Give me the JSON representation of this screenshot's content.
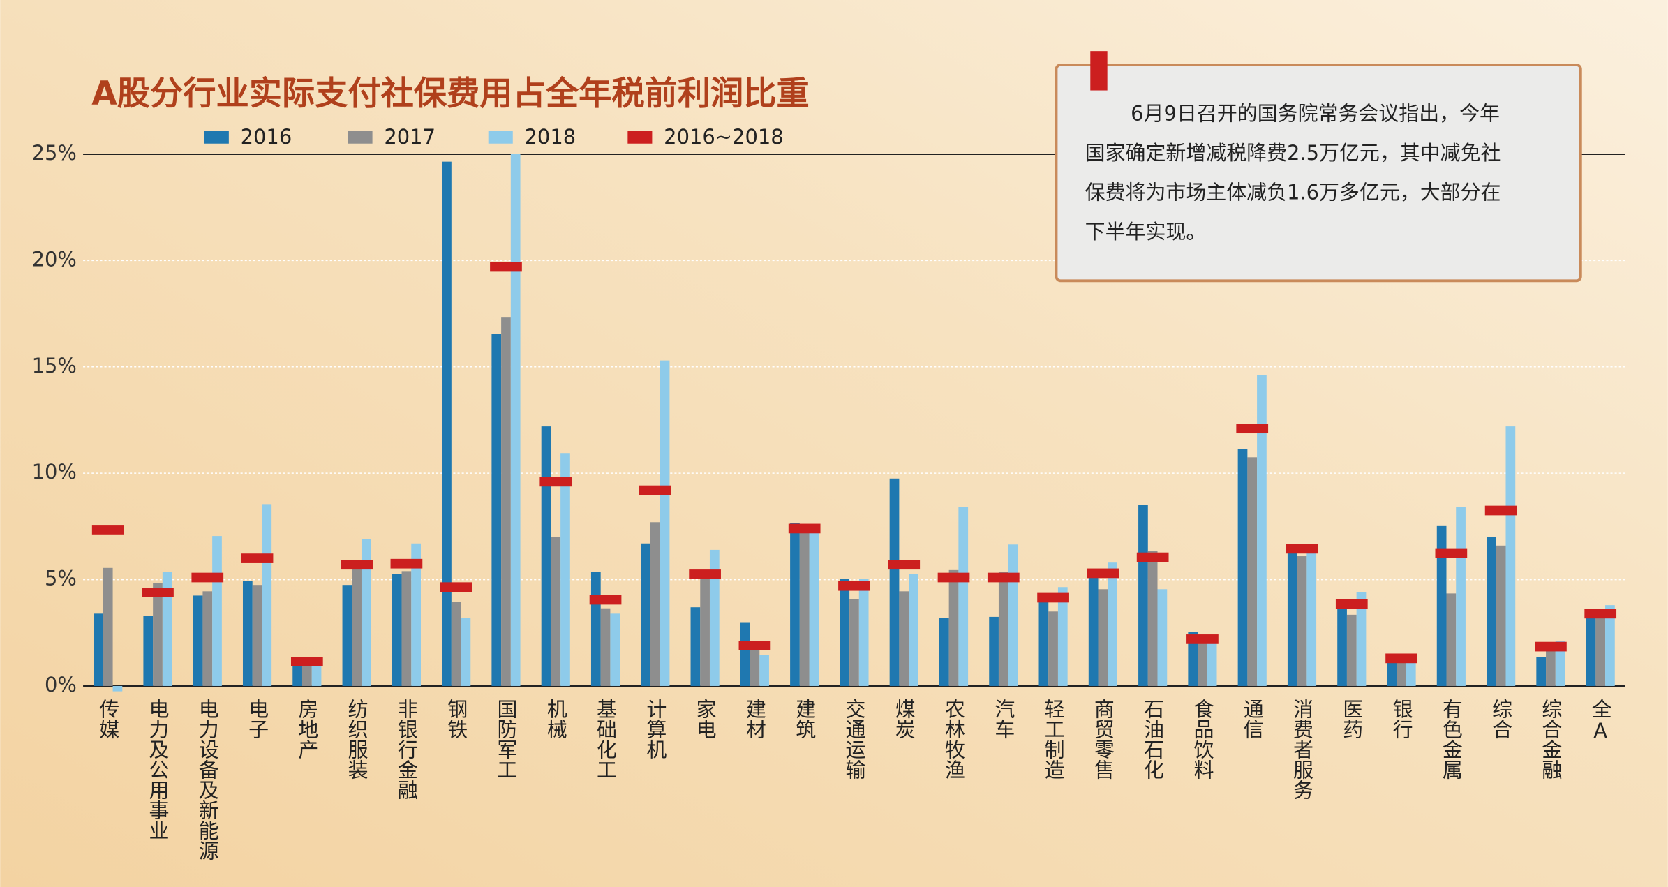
{
  "chart_data": {
    "type": "bar",
    "title": "A股分行业实际支付社保费用占全年税前利润比重",
    "annotation": [
      "6月9日召开的国务院常务会议指出，今年",
      "国家确定新增减税降费2.5万亿元，其中减免社",
      "保费将为市场主体减负1.6万多亿元，大部分在",
      "下半年实现。"
    ],
    "categories": [
      "传媒",
      "电力及公用事业",
      "电力设备及新能源",
      "电子",
      "房地产",
      "纺织服装",
      "非银行金融",
      "钢铁",
      "国防军工",
      "机械",
      "基础化工",
      "计算机",
      "家电",
      "建材",
      "建筑",
      "交通运输",
      "煤炭",
      "农林牧渔",
      "汽车",
      "轻工制造",
      "商贸零售",
      "石油石化",
      "食品饮料",
      "通信",
      "消费者服务",
      "医药",
      "银行",
      "有色金属",
      "综合",
      "综合金融",
      "全A"
    ],
    "series": [
      {
        "name": "2016",
        "color": "#1f78b0",
        "values": [
          3.4,
          3.3,
          4.25,
          4.95,
          0.95,
          4.75,
          5.25,
          24.65,
          16.55,
          12.2,
          5.35,
          6.7,
          3.7,
          3.0,
          7.65,
          5.05,
          9.75,
          3.2,
          3.25,
          3.95,
          5.25,
          8.5,
          2.55,
          11.15,
          6.45,
          3.75,
          1.15,
          7.55,
          7.0,
          1.35,
          3.4
        ]
      },
      {
        "name": "2017",
        "color": "#8e8e8e",
        "values": [
          5.55,
          4.85,
          4.45,
          4.75,
          0.95,
          5.75,
          5.4,
          3.95,
          17.35,
          7.0,
          3.65,
          7.7,
          5.25,
          1.75,
          7.45,
          4.1,
          4.45,
          5.45,
          5.35,
          3.5,
          4.55,
          6.35,
          2.05,
          10.75,
          6.1,
          3.35,
          1.25,
          4.35,
          6.6,
          1.65,
          3.35
        ]
      },
      {
        "name": "2018",
        "color": "#8ecbea",
        "values": [
          -0.25,
          5.35,
          7.05,
          8.55,
          0.95,
          6.9,
          6.7,
          3.2,
          25,
          10.95,
          3.4,
          15.3,
          6.4,
          1.45,
          7.25,
          5.05,
          5.25,
          8.4,
          6.65,
          4.65,
          5.8,
          4.55,
          2.05,
          14.6,
          6.3,
          4.4,
          1.25,
          8.4,
          12.2,
          2.1,
          3.8
        ]
      },
      {
        "name": "2016~2018",
        "color": "#cc1f1f",
        "style": "marker",
        "values": [
          7.35,
          4.4,
          5.1,
          6.0,
          1.15,
          5.7,
          5.75,
          4.65,
          19.7,
          9.6,
          4.05,
          9.2,
          5.25,
          1.9,
          7.4,
          4.7,
          5.7,
          5.1,
          5.1,
          4.15,
          5.3,
          6.05,
          2.2,
          12.1,
          6.45,
          3.85,
          1.3,
          6.25,
          8.25,
          1.85,
          3.4
        ]
      }
    ],
    "ylim": [
      0,
      25
    ],
    "yticks": [
      {
        "value": 0,
        "label": "0%"
      },
      {
        "value": 5,
        "label": "5%"
      },
      {
        "value": 10,
        "label": "10%"
      },
      {
        "value": 15,
        "label": "15%"
      },
      {
        "value": 20,
        "label": "20%"
      },
      {
        "value": 25,
        "label": "25%"
      }
    ],
    "grid": true
  }
}
